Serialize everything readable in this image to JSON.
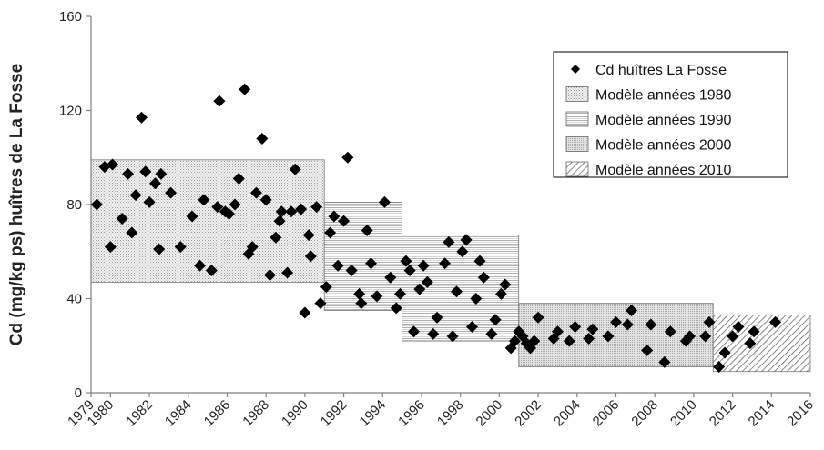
{
  "chart_data": {
    "type": "scatter",
    "ylabel": "Cd (mg/kg ps) huîtres de La Fosse",
    "xlabel": "",
    "xlim": [
      1979,
      2016
    ],
    "ylim": [
      0,
      160
    ],
    "x_ticks": [
      "1979",
      "1980",
      "1982",
      "1984",
      "1986",
      "1988",
      "1990",
      "1992",
      "1994",
      "1996",
      "1998",
      "2000",
      "2002",
      "2004",
      "2006",
      "2008",
      "2010",
      "2012",
      "2014",
      "2016"
    ],
    "y_ticks": [
      "0",
      "40",
      "80",
      "120",
      "160"
    ],
    "legend_position": "top-right",
    "series": [
      {
        "name": "Cd huîtres La Fosse",
        "marker": "diamond",
        "color": "#000000",
        "points": [
          [
            1979.3,
            80
          ],
          [
            1979.7,
            96
          ],
          [
            1980.1,
            97
          ],
          [
            1980.0,
            62
          ],
          [
            1980.6,
            74
          ],
          [
            1980.9,
            93
          ],
          [
            1981.1,
            68
          ],
          [
            1981.3,
            84
          ],
          [
            1981.6,
            117
          ],
          [
            1981.8,
            94
          ],
          [
            1982.0,
            81
          ],
          [
            1982.3,
            89
          ],
          [
            1982.6,
            93
          ],
          [
            1982.5,
            61
          ],
          [
            1983.1,
            85
          ],
          [
            1983.6,
            62
          ],
          [
            1984.2,
            75
          ],
          [
            1984.6,
            54
          ],
          [
            1984.8,
            82
          ],
          [
            1985.2,
            52
          ],
          [
            1985.5,
            79
          ],
          [
            1985.6,
            124
          ],
          [
            1985.9,
            77
          ],
          [
            1986.1,
            76
          ],
          [
            1986.4,
            80
          ],
          [
            1986.6,
            91
          ],
          [
            1986.9,
            129
          ],
          [
            1987.1,
            59
          ],
          [
            1987.3,
            62
          ],
          [
            1987.5,
            85
          ],
          [
            1987.8,
            108
          ],
          [
            1988.0,
            82
          ],
          [
            1988.2,
            50
          ],
          [
            1988.5,
            66
          ],
          [
            1988.7,
            73
          ],
          [
            1988.8,
            77
          ],
          [
            1989.1,
            51
          ],
          [
            1989.3,
            77
          ],
          [
            1989.5,
            95
          ],
          [
            1989.8,
            78
          ],
          [
            1990.0,
            34
          ],
          [
            1990.2,
            67
          ],
          [
            1990.3,
            58
          ],
          [
            1990.6,
            79
          ],
          [
            1990.8,
            38
          ],
          [
            1991.1,
            45
          ],
          [
            1991.3,
            68
          ],
          [
            1991.5,
            75
          ],
          [
            1991.7,
            54
          ],
          [
            1992.0,
            73
          ],
          [
            1992.2,
            100
          ],
          [
            1992.4,
            52
          ],
          [
            1992.8,
            42
          ],
          [
            1992.9,
            38
          ],
          [
            1993.2,
            69
          ],
          [
            1993.4,
            55
          ],
          [
            1993.7,
            41
          ],
          [
            1994.1,
            81
          ],
          [
            1994.4,
            49
          ],
          [
            1994.7,
            36
          ],
          [
            1994.9,
            42
          ],
          [
            1995.2,
            56
          ],
          [
            1995.4,
            52
          ],
          [
            1995.6,
            26
          ],
          [
            1995.9,
            44
          ],
          [
            1996.1,
            54
          ],
          [
            1996.3,
            47
          ],
          [
            1996.6,
            25
          ],
          [
            1996.8,
            32
          ],
          [
            1997.2,
            55
          ],
          [
            1997.4,
            64
          ],
          [
            1997.6,
            24
          ],
          [
            1997.8,
            43
          ],
          [
            1998.1,
            60
          ],
          [
            1998.3,
            65
          ],
          [
            1998.6,
            28
          ],
          [
            1998.8,
            40
          ],
          [
            1999.0,
            56
          ],
          [
            1999.2,
            49
          ],
          [
            1999.6,
            25
          ],
          [
            1999.8,
            31
          ],
          [
            2000.1,
            42
          ],
          [
            2000.3,
            46
          ],
          [
            2000.6,
            19
          ],
          [
            2000.8,
            22
          ],
          [
            2001.0,
            26
          ],
          [
            2001.2,
            24
          ],
          [
            2001.4,
            21
          ],
          [
            2001.6,
            19
          ],
          [
            2001.8,
            22
          ],
          [
            2002.0,
            32
          ],
          [
            2002.8,
            23
          ],
          [
            2003.0,
            26
          ],
          [
            2003.6,
            22
          ],
          [
            2003.9,
            28
          ],
          [
            2004.6,
            23
          ],
          [
            2004.8,
            27
          ],
          [
            2005.6,
            24
          ],
          [
            2006.0,
            30
          ],
          [
            2006.6,
            29
          ],
          [
            2006.8,
            35
          ],
          [
            2007.6,
            18
          ],
          [
            2007.8,
            29
          ],
          [
            2008.5,
            13
          ],
          [
            2008.8,
            26
          ],
          [
            2009.6,
            22
          ],
          [
            2009.8,
            24
          ],
          [
            2010.6,
            24
          ],
          [
            2010.8,
            30
          ],
          [
            2011.3,
            11
          ],
          [
            2011.6,
            17
          ],
          [
            2012.0,
            24
          ],
          [
            2012.3,
            28
          ],
          [
            2012.9,
            21
          ],
          [
            2013.1,
            26
          ],
          [
            2014.2,
            30
          ]
        ]
      },
      {
        "name": "Modèle années 1980",
        "type": "range",
        "pattern": "dots-fine",
        "x_range": [
          1979,
          1991
        ],
        "y_range": [
          47,
          99
        ]
      },
      {
        "name": "Modèle années 1990",
        "type": "range",
        "pattern": "horizontal-lines",
        "x_range": [
          1991,
          2001
        ],
        "y_range": [
          35,
          81
        ],
        "x_split": 1995,
        "y_range_after_split": [
          22,
          67
        ]
      },
      {
        "name": "Modèle années 2000",
        "type": "range",
        "pattern": "dots-dense",
        "x_range": [
          2001,
          2011
        ],
        "y_range": [
          11,
          38
        ]
      },
      {
        "name": "Modèle années 2010",
        "type": "range",
        "pattern": "diagonal",
        "x_range": [
          2011,
          2016
        ],
        "y_range": [
          9,
          33
        ]
      }
    ]
  }
}
